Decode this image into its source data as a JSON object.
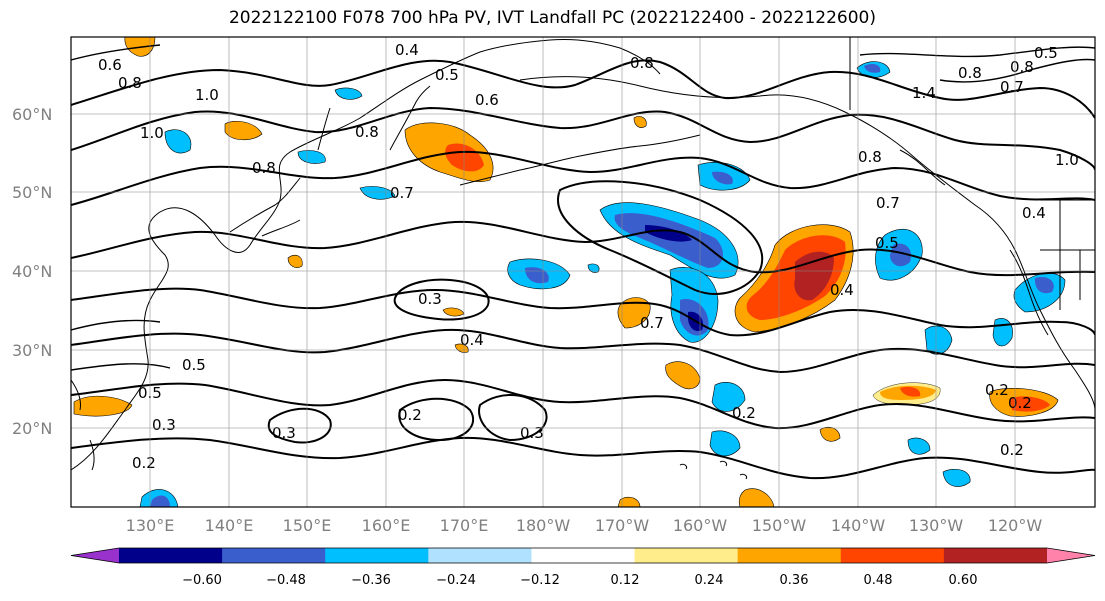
{
  "title": "2022122100 F078 700 hPa PV, IVT Landfall PC (2022122400 - 2022122600)",
  "latitude_labels": [
    "60°N",
    "50°N",
    "40°N",
    "30°N",
    "20°N"
  ],
  "longitude_labels": [
    "130°E",
    "140°E",
    "150°E",
    "160°E",
    "170°E",
    "180°W",
    "170°W",
    "160°W",
    "150°W",
    "140°W",
    "130°W",
    "120°W"
  ],
  "contour_labels": [
    "0.6",
    "0.8",
    "1.0",
    "1.0",
    "0.8",
    "0.8",
    "0.7",
    "0.4",
    "0.5",
    "0.6",
    "0.3",
    "0.4",
    "0.7",
    "0.8",
    "0.8",
    "0.7",
    "0.5",
    "0.4",
    "0.4",
    "0.5",
    "0.8",
    "0.7",
    "0.8",
    "1.4",
    "1.0",
    "0.5",
    "0.5",
    "0.3",
    "0.2",
    "0.3",
    "0.2",
    "0.3",
    "0.2",
    "0.2",
    "0.2",
    "0.2"
  ],
  "colorbar": {
    "colors": [
      "#9932cc",
      "#00008b",
      "#3a5fcd",
      "#00bfff",
      "#b0e2ff",
      "#ffffff",
      "#ffec8b",
      "#ffa500",
      "#ff4500",
      "#b22222",
      "#ff82ab"
    ],
    "ticks": [
      "−0.60",
      "−0.48",
      "−0.36",
      "−0.24",
      "−0.12",
      "0.12",
      "0.24",
      "0.36",
      "0.48",
      "0.60"
    ]
  }
}
